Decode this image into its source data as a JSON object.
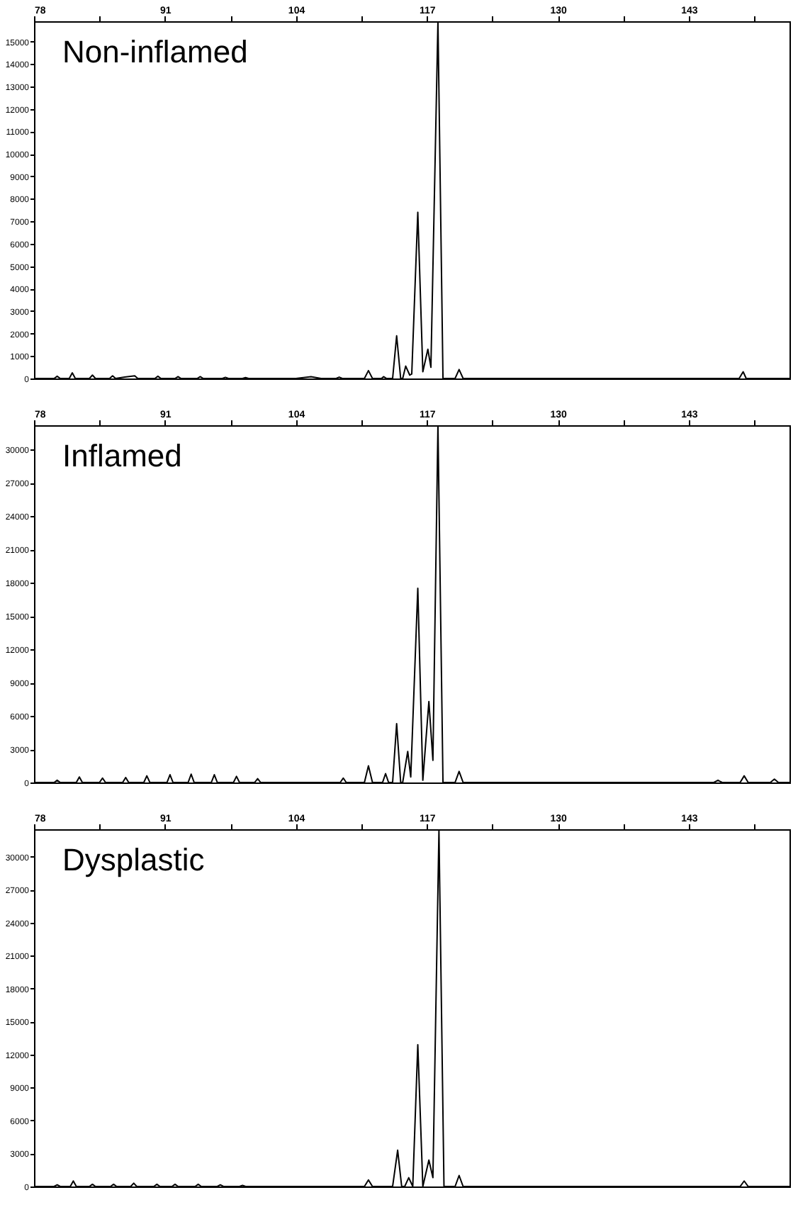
{
  "chart_data": [
    {
      "type": "line",
      "annotations": [
        "Non-inflamed"
      ],
      "xlim": [
        78,
        153
      ],
      "xticks": [
        78,
        {
          "value": 84.5,
          "label": null
        },
        91,
        {
          "value": 97.5,
          "label": null
        },
        104,
        {
          "value": 110.5,
          "label": null
        },
        117,
        {
          "value": 123.5,
          "label": null
        },
        130,
        {
          "value": 136.5,
          "label": null
        },
        143,
        {
          "value": 149.5,
          "label": null
        }
      ],
      "ylim": [
        0,
        15900
      ],
      "yticks": [
        0,
        1000,
        2000,
        3000,
        4000,
        5000,
        6000,
        7000,
        8000,
        9000,
        10000,
        11000,
        12000,
        13000,
        14000,
        15000
      ],
      "grid": false,
      "series": [
        {
          "color": "#000000",
          "x": [
            78,
            80,
            80.3,
            80.6,
            81.5,
            81.8,
            82.1,
            83.5,
            83.8,
            84.1,
            85.5,
            85.8,
            86.1,
            87,
            88,
            88.3,
            90,
            90.3,
            90.6,
            92,
            92.3,
            92.6,
            94.2,
            94.5,
            94.8,
            96.7,
            97,
            97.3,
            98.7,
            99,
            99.3,
            104,
            105.5,
            106.5,
            108,
            108.3,
            108.6,
            110.8,
            111.2,
            111.6,
            112.5,
            112.7,
            113,
            113.6,
            114,
            114.4,
            114.6,
            114.9,
            115.3,
            115.5,
            116.1,
            116.6,
            117.1,
            117.4,
            118.1,
            118.6,
            119.8,
            120.2,
            120.6,
            148,
            148.4,
            148.7,
            153
          ],
          "values": [
            0,
            0,
            100,
            0,
            0,
            250,
            0,
            0,
            150,
            0,
            0,
            120,
            0,
            60,
            120,
            0,
            0,
            100,
            0,
            0,
            80,
            0,
            0,
            80,
            0,
            0,
            50,
            0,
            0,
            40,
            0,
            0,
            80,
            0,
            0,
            60,
            0,
            0,
            350,
            0,
            0,
            80,
            0,
            0,
            1900,
            0,
            0,
            550,
            150,
            200,
            7400,
            300,
            1300,
            500,
            15900,
            0,
            0,
            400,
            0,
            0,
            300,
            0,
            0
          ]
        }
      ]
    },
    {
      "type": "line",
      "annotations": [
        "Inflamed"
      ],
      "xlim": [
        78,
        153
      ],
      "xticks": [
        78,
        {
          "value": 84.5,
          "label": null
        },
        91,
        {
          "value": 97.5,
          "label": null
        },
        104,
        {
          "value": 110.5,
          "label": null
        },
        117,
        {
          "value": 123.5,
          "label": null
        },
        130,
        {
          "value": 136.5,
          "label": null
        },
        143,
        {
          "value": 149.5,
          "label": null
        }
      ],
      "ylim": [
        0,
        32200
      ],
      "yticks": [
        0,
        3000,
        6000,
        9000,
        12000,
        15000,
        18000,
        21000,
        24000,
        27000,
        30000
      ],
      "grid": false,
      "series": [
        {
          "color": "#000000",
          "x": [
            78,
            80,
            80.3,
            80.6,
            82.2,
            82.5,
            82.8,
            84.5,
            84.8,
            85.1,
            86.8,
            87.1,
            87.4,
            88.9,
            89.2,
            89.5,
            91.2,
            91.5,
            91.8,
            93.3,
            93.6,
            93.9,
            95.6,
            95.9,
            96.2,
            97.8,
            98.1,
            98.4,
            99.9,
            100.2,
            100.5,
            104,
            108.4,
            108.7,
            109,
            110.8,
            111.2,
            111.6,
            112.6,
            112.9,
            113.2,
            113.6,
            114,
            114.4,
            114.6,
            115.1,
            115.4,
            116.1,
            116.6,
            117.2,
            117.6,
            118.1,
            118.6,
            119.8,
            120.2,
            120.6,
            145.5,
            145.9,
            146.3,
            148.1,
            148.5,
            148.9,
            151.1,
            151.5,
            151.9,
            153
          ],
          "values": [
            0,
            0,
            200,
            0,
            0,
            500,
            0,
            0,
            400,
            0,
            0,
            450,
            0,
            0,
            600,
            0,
            0,
            700,
            0,
            0,
            750,
            0,
            0,
            700,
            0,
            0,
            550,
            0,
            0,
            350,
            0,
            0,
            0,
            400,
            0,
            0,
            1500,
            0,
            0,
            800,
            0,
            0,
            5300,
            0,
            0,
            2800,
            500,
            17500,
            200,
            7300,
            2000,
            32200,
            0,
            0,
            1000,
            0,
            0,
            200,
            0,
            0,
            600,
            0,
            0,
            300,
            0,
            0
          ]
        }
      ]
    },
    {
      "type": "line",
      "annotations": [
        "Dysplastic"
      ],
      "xlim": [
        78,
        153
      ],
      "xticks": [
        78,
        {
          "value": 84.5,
          "label": null
        },
        91,
        {
          "value": 97.5,
          "label": null
        },
        104,
        {
          "value": 110.5,
          "label": null
        },
        117,
        {
          "value": 123.5,
          "label": null
        },
        130,
        {
          "value": 136.5,
          "label": null
        },
        143,
        {
          "value": 149.5,
          "label": null
        }
      ],
      "ylim": [
        0,
        32500
      ],
      "yticks": [
        0,
        3000,
        6000,
        9000,
        12000,
        15000,
        18000,
        21000,
        24000,
        27000,
        30000
      ],
      "grid": false,
      "series": [
        {
          "color": "#000000",
          "x": [
            78,
            80,
            80.3,
            80.6,
            81.6,
            81.9,
            82.2,
            83.5,
            83.8,
            84.1,
            85.6,
            85.9,
            86.2,
            87.6,
            87.9,
            88.2,
            89.9,
            90.2,
            90.5,
            91.7,
            92,
            92.3,
            94,
            94.3,
            94.6,
            96.2,
            96.5,
            96.8,
            98.4,
            98.7,
            99,
            104,
            110.8,
            111.2,
            111.6,
            113.6,
            114.1,
            114.5,
            114.8,
            115.2,
            115.6,
            116.1,
            116.6,
            117.2,
            117.6,
            118.2,
            118.7,
            119.8,
            120.2,
            120.6,
            148.1,
            148.5,
            148.9,
            153
          ],
          "values": [
            0,
            0,
            150,
            0,
            0,
            500,
            0,
            0,
            200,
            0,
            0,
            200,
            0,
            0,
            300,
            0,
            0,
            200,
            0,
            0,
            200,
            0,
            0,
            200,
            0,
            0,
            150,
            0,
            0,
            100,
            0,
            0,
            0,
            600,
            0,
            0,
            3300,
            0,
            0,
            800,
            0,
            12900,
            0,
            2400,
            800,
            32400,
            0,
            0,
            1000,
            0,
            0,
            500,
            0,
            0
          ]
        }
      ]
    }
  ]
}
